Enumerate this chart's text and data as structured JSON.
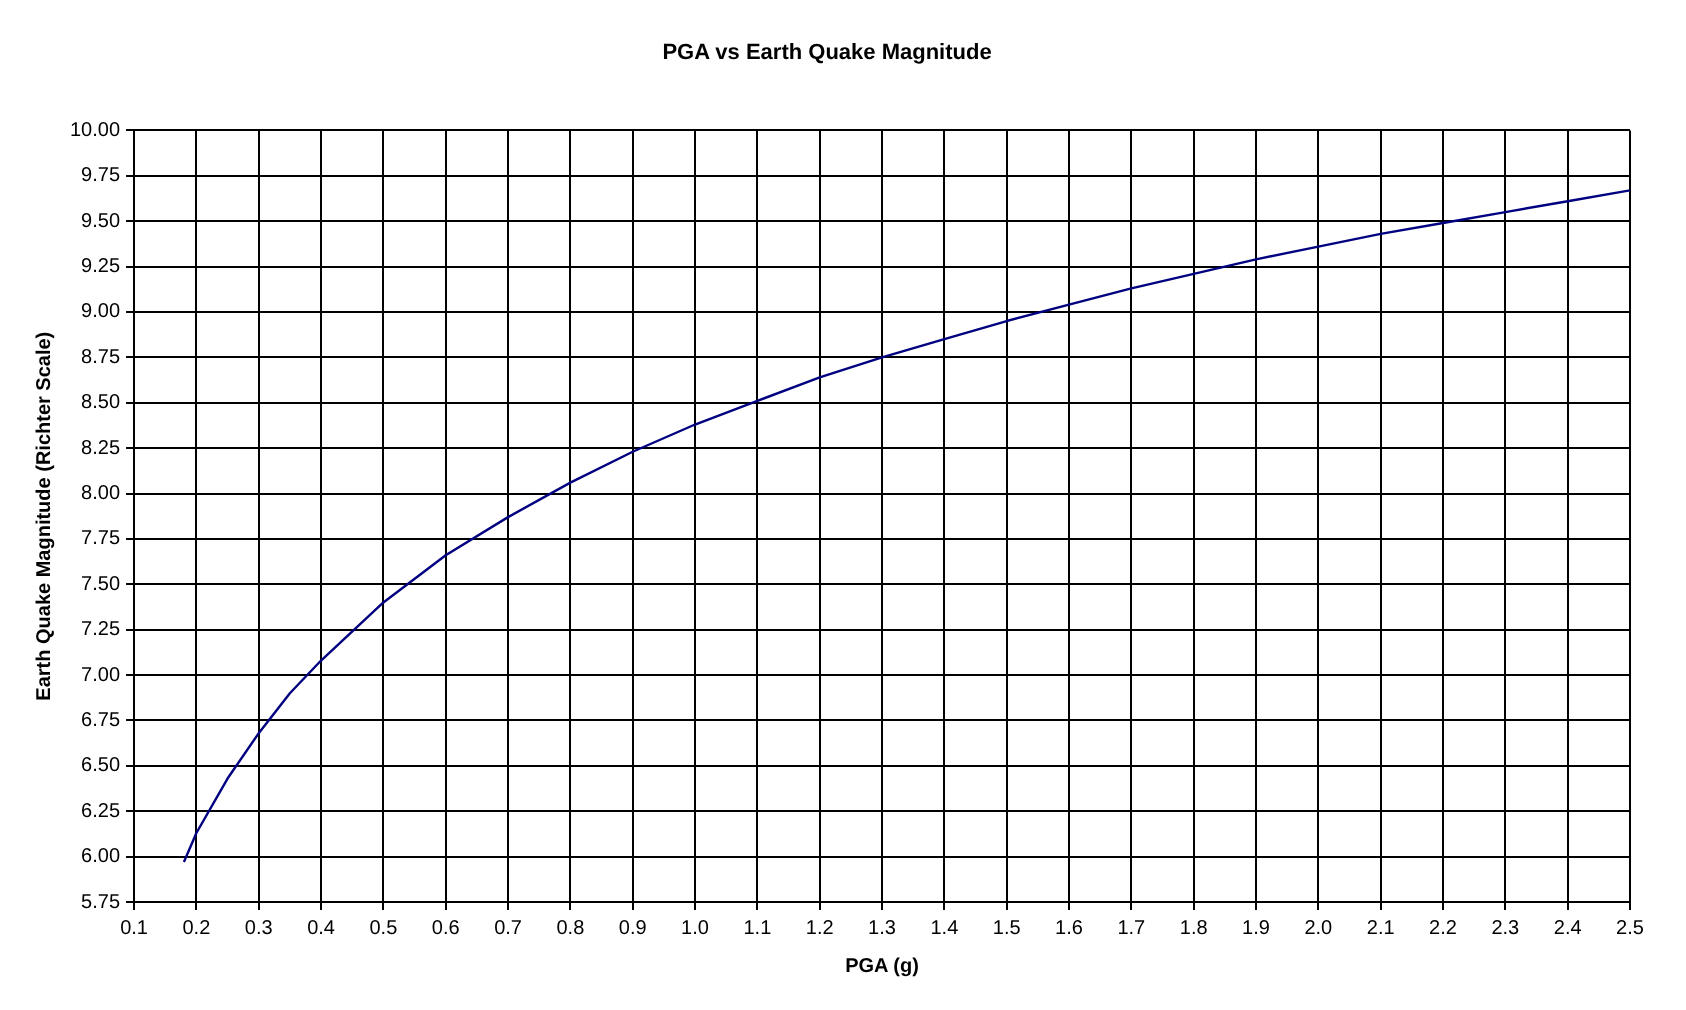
{
  "chart_data": {
    "type": "line",
    "title": "PGA vs Earth Quake Magnitude",
    "xlabel": "PGA (g)",
    "ylabel": "Earth Quake Magnitude (Richter Scale)",
    "x": [
      0.18,
      0.2,
      0.25,
      0.3,
      0.35,
      0.4,
      0.5,
      0.6,
      0.7,
      0.8,
      0.9,
      1.0,
      1.1,
      1.2,
      1.3,
      1.4,
      1.5,
      1.6,
      1.7,
      1.8,
      1.9,
      2.0,
      2.1,
      2.2,
      2.3,
      2.4,
      2.5
    ],
    "series": [
      {
        "color": "#000080",
        "values": [
          5.97,
          6.13,
          6.43,
          6.68,
          6.9,
          7.08,
          7.4,
          7.66,
          7.87,
          8.06,
          8.23,
          8.38,
          8.51,
          8.64,
          8.75,
          8.85,
          8.95,
          9.04,
          9.13,
          9.21,
          9.29,
          9.36,
          9.43,
          9.49,
          9.55,
          9.61,
          9.67
        ]
      }
    ],
    "xlim": [
      0.1,
      2.5
    ],
    "xticks": [
      0.1,
      0.2,
      0.3,
      0.4,
      0.5,
      0.6,
      0.7,
      0.8,
      0.9,
      {
        "value": 1,
        "label": "1.0"
      },
      1.1,
      1.2,
      1.3,
      1.4,
      1.5,
      1.6,
      1.7,
      1.8,
      1.9,
      {
        "value": 2,
        "label": "2.0"
      },
      2.1,
      2.2,
      2.3,
      2.4,
      2.5
    ],
    "ylim": [
      5.75,
      10
    ],
    "yticks": [
      {
        "value": 5.75,
        "label": "5.75"
      },
      {
        "value": 6,
        "label": "6.00"
      },
      {
        "value": 6.25,
        "label": "6.25"
      },
      {
        "value": 6.5,
        "label": "6.50"
      },
      {
        "value": 6.75,
        "label": "6.75"
      },
      {
        "value": 7,
        "label": "7.00"
      },
      {
        "value": 7.25,
        "label": "7.25"
      },
      {
        "value": 7.5,
        "label": "7.50"
      },
      {
        "value": 7.75,
        "label": "7.75"
      },
      {
        "value": 8,
        "label": "8.00"
      },
      {
        "value": 8.25,
        "label": "8.25"
      },
      {
        "value": 8.5,
        "label": "8.50"
      },
      {
        "value": 8.75,
        "label": "8.75"
      },
      {
        "value": 9,
        "label": "9.00"
      },
      {
        "value": 9.25,
        "label": "9.25"
      },
      {
        "value": 9.5,
        "label": "9.50"
      },
      {
        "value": 9.75,
        "label": "9.75"
      },
      {
        "value": 10,
        "label": "10.00"
      }
    ],
    "grid": true,
    "legend": false,
    "marker": "none",
    "line_style": "solid"
  }
}
